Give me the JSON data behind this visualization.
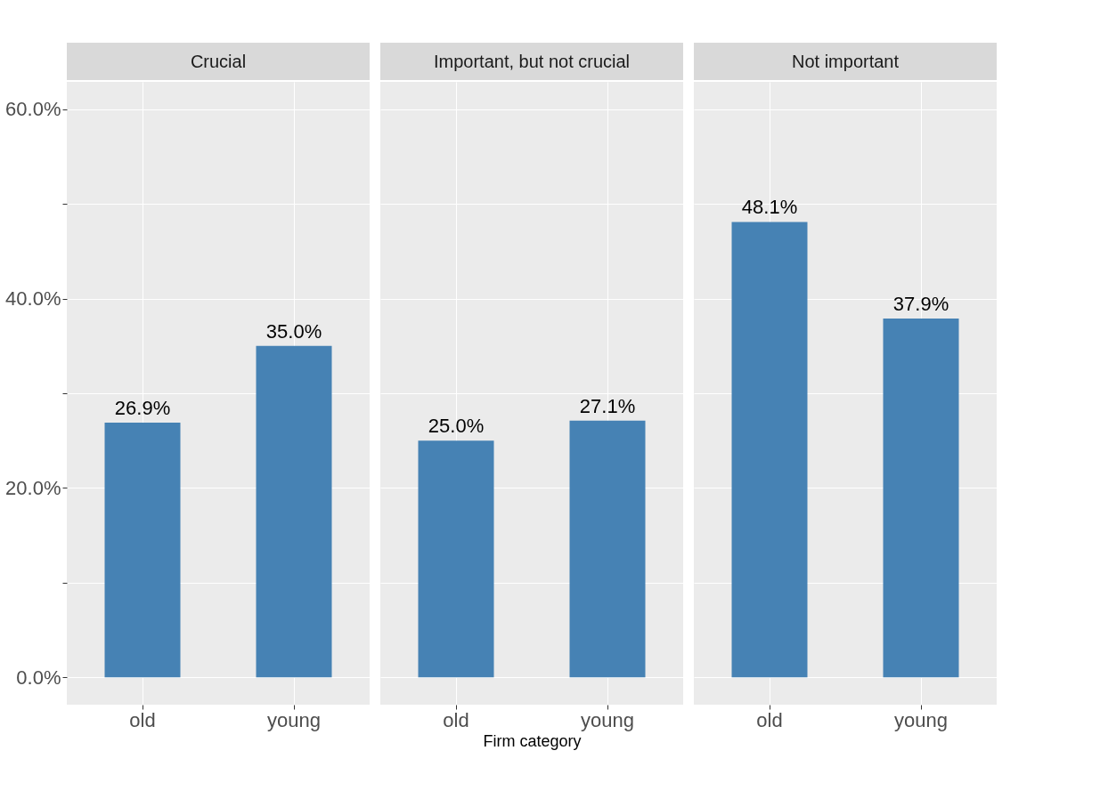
{
  "chart_data": [
    {
      "type": "bar",
      "title": "Crucial",
      "categories": [
        "old",
        "young"
      ],
      "values": [
        26.9,
        35.0
      ],
      "value_labels": [
        "26.9%",
        "35.0%"
      ],
      "color": "#4682b4",
      "ylim": [
        -2.9,
        62.9
      ],
      "yticks": [
        {
          "value": 0,
          "label": "0.0%"
        },
        {
          "value": 10,
          "label": null
        },
        {
          "value": 20,
          "label": "20.0%"
        },
        {
          "value": 30,
          "label": null
        },
        {
          "value": 40,
          "label": "40.0%"
        },
        {
          "value": 50,
          "label": null
        },
        {
          "value": 60,
          "label": "60.0%"
        }
      ],
      "grid": true
    },
    {
      "type": "bar",
      "title": "Important, but not crucial",
      "xlabel": "Firm category",
      "categories": [
        "old",
        "young"
      ],
      "values": [
        25.0,
        27.1
      ],
      "value_labels": [
        "25.0%",
        "27.1%"
      ],
      "color": "#4682b4",
      "ylim": [
        -2.9,
        62.9
      ],
      "yticks": [
        0,
        10,
        20,
        30,
        40,
        50,
        60
      ],
      "grid": true,
      "tick_labels": "x"
    },
    {
      "type": "bar",
      "title": "Not important",
      "categories": [
        "old",
        "young"
      ],
      "values": [
        48.1,
        37.9
      ],
      "value_labels": [
        "48.1%",
        "37.9%"
      ],
      "color": "#4682b4",
      "ylim": [
        -2.9,
        62.9
      ],
      "yticks": [
        0,
        10,
        20,
        30,
        40,
        50,
        60
      ],
      "grid": true,
      "tick_labels": "x"
    }
  ]
}
